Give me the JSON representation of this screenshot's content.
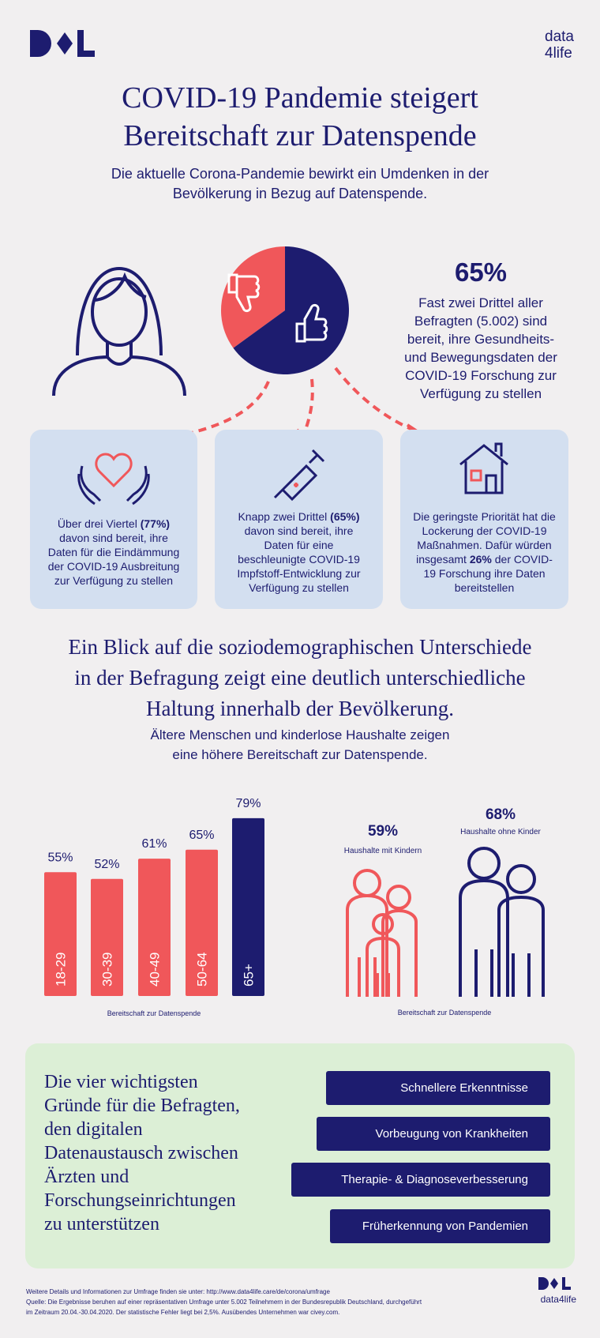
{
  "brand": [
    "data",
    "4life"
  ],
  "title": [
    "COVID-19 Pandemie steigert",
    "Bereitschaft zur Datenspende"
  ],
  "subtitle": [
    "Die aktuelle Corona-Pandemie bewirkt ein Umdenken in der",
    "Bevölkerung in Bezug auf Datenspende."
  ],
  "pie": {
    "type": "pie",
    "values": [
      35,
      65
    ],
    "colors": [
      "#f0575a",
      "#1d1c6f"
    ]
  },
  "stat": {
    "label": "65%",
    "lines": [
      "Fast zwei Drittel aller",
      "Befragten (5.002) sind",
      "bereit, ihre Gesundheits-",
      "und Bewegungsdaten der",
      "COVID-19 Forschung zur",
      "Verfügung zu stellen"
    ]
  },
  "cards": [
    {
      "text": [
        "Über drei Viertel ",
        "(77%)",
        " davon sind bereit, ihre Daten für die Eindämmung der COVID-19 Ausbreitung zur Verfügung zu stellen"
      ]
    },
    {
      "text": [
        "Knapp zwei Drittel ",
        "(65%)",
        " davon sind bereit, ihre Daten für eine beschleunigte COVID-19 Impfstoff-Entwicklung zur Verfügung zu stellen"
      ]
    },
    {
      "text": [
        "Die geringste Priorität hat die Lockerung der COVID-19 Maßnahmen. Dafür würden insgesamt ",
        "26%",
        " der COVID-19 Forschung ihre Daten bereitstellen"
      ]
    }
  ],
  "section": {
    "heading": [
      "Ein Blick auf die soziodemographischen Unterschiede",
      "in der Befragung zeigt eine deutlich unterschiedliche",
      "Haltung innerhalb der Bevölkerung."
    ],
    "subheading": [
      "Ältere Menschen und kinderlose Haushalte zeigen",
      "eine höhere Bereitschaft zur Datenspende."
    ]
  },
  "chart_data": {
    "type": "bar",
    "categories": [
      "18-29",
      "30-39",
      "40-49",
      "50-64",
      "65+"
    ],
    "values": [
      55,
      52,
      61,
      65,
      79
    ],
    "value_labels": [
      "55%",
      "52%",
      "61%",
      "65%",
      "79%"
    ],
    "colors": [
      "#f0575a",
      "#f0575a",
      "#f0575a",
      "#f0575a",
      "#1d1c6f"
    ],
    "xlabel": "Bereitschaft zur Datenspende"
  },
  "households": {
    "groups": [
      {
        "label": "59%",
        "name": "Haushalte mit Kindern"
      },
      {
        "label": "68%",
        "name": "Haushalte ohne Kinder"
      }
    ],
    "caption": "Bereitschaft zur Datenspende"
  },
  "reasons": {
    "heading": [
      "Die vier wichtigsten",
      "Gründe für die Befragten,",
      "den digitalen",
      "Datenaustausch zwischen",
      "Ärzten und",
      "Forschungseinrichtungen",
      "zu unterstützen"
    ],
    "items": [
      "Schnellere Erkenntnisse",
      "Vorbeugung von Krankheiten",
      "Therapie- & Diagnoseverbesserung",
      "Früherkennung von Pandemien"
    ]
  },
  "footer": {
    "lines": [
      "Weitere Details und Informationen zur Umfrage finden sie unter: http://www.data4life.care/de/corona/umfrage",
      "Quelle: Die Ergebnisse beruhen auf einer repräsentativen Umfrage unter 5.002 Teilnehmern in der Bundesrepublik Deutschland, durchgeführt",
      "im Zeitraum 20.04.-30.04.2020. Der statistische Fehler liegt bei 2,5%. Ausübendes Unternehmen war civey.com."
    ],
    "brand": "data4life"
  }
}
